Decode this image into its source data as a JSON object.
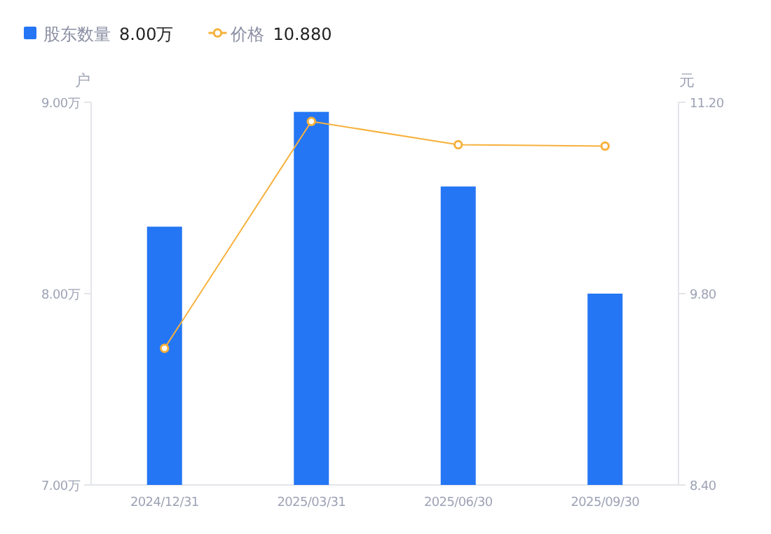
{
  "chart_data": {
    "type": "bar",
    "categories": [
      "2024/12/31",
      "2025/03/31",
      "2025/06/30",
      "2025/09/30"
    ],
    "series": [
      {
        "name": "股东数量",
        "color": "#2476f4",
        "values": [
          8.35,
          8.95,
          8.56,
          8.0
        ]
      },
      {
        "name": "价格",
        "type": "line",
        "axis": "y2",
        "color": "#f7b13c",
        "marker": "circle",
        "values": [
          9.4,
          11.06,
          10.89,
          10.88
        ]
      }
    ],
    "ylabel": "户",
    "y2label": "元",
    "ylim": [
      7,
      9
    ],
    "yticks": [
      {
        "value": 7,
        "label": "7.00万"
      },
      {
        "value": 8,
        "label": "8.00万"
      },
      {
        "value": 9,
        "label": "9.00万"
      }
    ],
    "y2lim": [
      8.4,
      11.2
    ],
    "y2ticks": [
      {
        "value": 8.4,
        "label": "8.40"
      },
      {
        "value": 9.8,
        "label": "9.80"
      },
      {
        "value": 11.2,
        "label": "11.20"
      }
    ],
    "annotations": [
      "8.00万",
      "10.880"
    ],
    "legend": "top",
    "grid": false
  }
}
